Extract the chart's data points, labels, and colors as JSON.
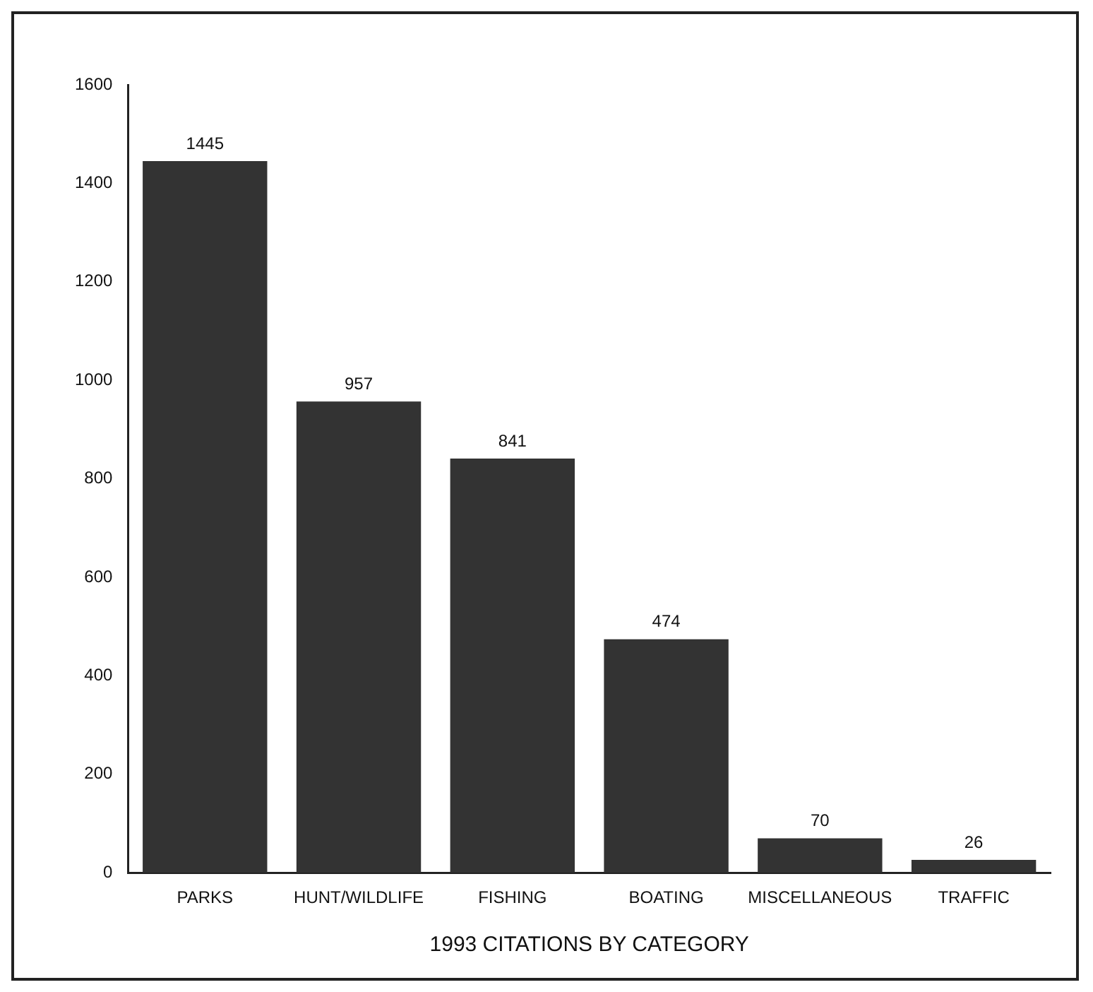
{
  "chart_data": {
    "type": "bar",
    "xlabel": "1993 CITATIONS BY CATEGORY",
    "categories": [
      "PARKS",
      "HUNT/WILDLIFE",
      "FISHING",
      "BOATING",
      "MISCELLANEOUS",
      "TRAFFIC"
    ],
    "values": [
      1445,
      957,
      841,
      474,
      70,
      26
    ],
    "color": "#333333",
    "ylim": [
      0,
      1600
    ],
    "yticks": [
      0,
      200,
      400,
      600,
      800,
      1000,
      1200,
      1400,
      1600
    ],
    "grid": false,
    "data_labels": true
  }
}
